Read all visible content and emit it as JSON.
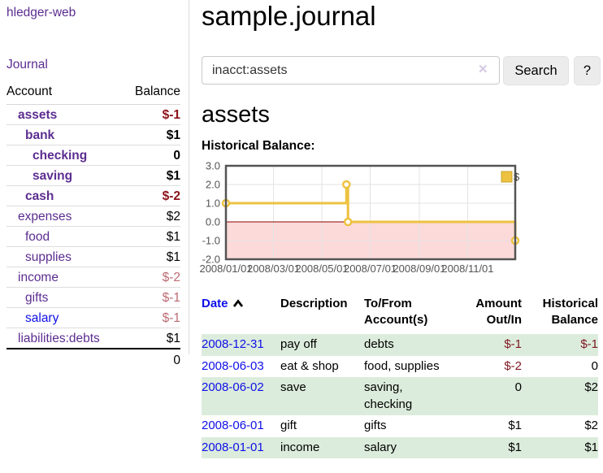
{
  "app": {
    "title": "hledger-web"
  },
  "sidebar": {
    "journal_label": "Journal",
    "accounts": {
      "headers": {
        "account": "Account",
        "balance": "Balance"
      },
      "rows": [
        {
          "label": "assets",
          "balance": "$-1",
          "tr": "d1 bold",
          "link": "",
          "bal": "bal neg-dark"
        },
        {
          "label": "bank",
          "balance": "$1",
          "tr": "d2 bold",
          "link": "",
          "bal": "bal"
        },
        {
          "label": "checking",
          "balance": "0",
          "tr": "d3 bold",
          "link": "",
          "bal": "bal"
        },
        {
          "label": "saving",
          "balance": "$1",
          "tr": "d3 bold",
          "link": "",
          "bal": "bal"
        },
        {
          "label": "cash",
          "balance": "$-2",
          "tr": "d2 bold",
          "link": "",
          "bal": "bal neg-dark"
        },
        {
          "label": "expenses",
          "balance": "$2",
          "tr": "d1",
          "link": "",
          "bal": "bal"
        },
        {
          "label": "food",
          "balance": "$1",
          "tr": "d2",
          "link": "",
          "bal": "bal"
        },
        {
          "label": "supplies",
          "balance": "$1",
          "tr": "d2",
          "link": "",
          "bal": "bal"
        },
        {
          "label": "income",
          "balance": "$-2",
          "tr": "d1",
          "link": "",
          "bal": "bal neg-light"
        },
        {
          "label": "gifts",
          "balance": "$-1",
          "tr": "d2",
          "link": "",
          "bal": "bal neg-light"
        },
        {
          "label": "salary",
          "balance": "$-1",
          "tr": "d2",
          "link": "blue",
          "bal": "bal neg-light"
        },
        {
          "label": "liabilities:debts",
          "balance": "$1",
          "tr": "d1 last",
          "link": "",
          "bal": "bal"
        }
      ],
      "total": "0"
    }
  },
  "main": {
    "title": "sample.journal",
    "search": {
      "value": "inacct:assets",
      "clear_icon": "✕",
      "button_label": "Search",
      "help_label": "?"
    },
    "account_heading": "assets",
    "chart_heading": "Historical Balance:",
    "register": {
      "headers": {
        "date": "Date",
        "description": "Description",
        "account": "To/From Account(s)",
        "amount": "Amount Out/In",
        "balance": "Historical Balance"
      },
      "rows": [
        {
          "date": "2008-12-31",
          "description": "pay off",
          "accounts": "debts",
          "amount": "$-1",
          "balance": "$-1",
          "tr": "g",
          "amt": "num neg",
          "bal": "num neg"
        },
        {
          "date": "2008-06-03",
          "description": "eat & shop",
          "accounts": "food, supplies",
          "amount": "$-2",
          "balance": "0",
          "tr": "",
          "amt": "num neg",
          "bal": "num"
        },
        {
          "date": "2008-06-02",
          "description": "save",
          "accounts": "saving, checking",
          "amount": "0",
          "balance": "$2",
          "tr": "g",
          "amt": "num",
          "bal": "num"
        },
        {
          "date": "2008-06-01",
          "description": "gift",
          "accounts": "gifts",
          "amount": "$1",
          "balance": "$2",
          "tr": "",
          "amt": "num",
          "bal": "num"
        },
        {
          "date": "2008-01-01",
          "description": "income",
          "accounts": "salary",
          "amount": "$1",
          "balance": "$1",
          "tr": "g",
          "amt": "num",
          "bal": "num"
        }
      ]
    }
  },
  "chart_data": {
    "type": "line",
    "step": true,
    "title": "Historical Balance",
    "xlabel": "",
    "ylabel": "",
    "ylim": [
      -2,
      3
    ],
    "x_range_days": [
      0,
      365
    ],
    "grid": true,
    "legend_position": "top-right",
    "negative_fill": "#fcdada",
    "zero_line_color": "#8b0000",
    "border_color": "#545454",
    "grid_color": "#e3e3e3",
    "series": [
      {
        "name": "$",
        "color": "#edc240",
        "points": [
          {
            "date": "2008-01-01",
            "day": 0,
            "value": 1
          },
          {
            "date": "2008-06-01",
            "day": 152,
            "value": 2
          },
          {
            "date": "2008-06-03",
            "day": 154,
            "value": 0
          },
          {
            "date": "2008-12-31",
            "day": 365,
            "value": -1
          }
        ]
      }
    ],
    "y_ticks": [
      3,
      2,
      1,
      0,
      -1,
      -2
    ],
    "x_ticks": [
      {
        "label": "2008/01/01",
        "day": 0
      },
      {
        "label": "2008/03/01",
        "day": 60
      },
      {
        "label": "2008/05/01",
        "day": 121
      },
      {
        "label": "2008/07/01",
        "day": 182
      },
      {
        "label": "2008/09/01",
        "day": 244
      },
      {
        "label": "2008/11/01",
        "day": 305
      }
    ]
  }
}
